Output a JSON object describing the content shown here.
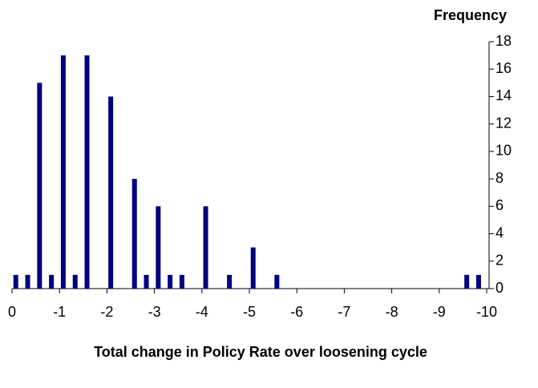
{
  "chart_data": {
    "type": "bar",
    "y_label": "Frequency",
    "x_label": "Total change in Policy Rate over loosening cycle",
    "x": [
      -0.08,
      -0.33,
      -0.58,
      -0.83,
      -1.08,
      -1.33,
      -1.58,
      -2.08,
      -2.58,
      -2.83,
      -3.08,
      -3.33,
      -3.58,
      -4.08,
      -4.58,
      -5.08,
      -5.58,
      -9.58,
      -9.83
    ],
    "values": [
      1,
      1,
      15,
      1,
      17,
      1,
      17,
      14,
      8,
      1,
      6,
      1,
      1,
      6,
      1,
      3,
      1,
      1,
      1
    ],
    "color": "#000080",
    "xlim": [
      0,
      -10
    ],
    "xticks": [
      0,
      -1,
      -2,
      -3,
      -4,
      -5,
      -6,
      -7,
      -8,
      -9,
      -10
    ],
    "ylim": [
      0,
      18
    ],
    "yticks": [
      0,
      2,
      4,
      6,
      8,
      10,
      12,
      14,
      16,
      18
    ],
    "y_axis_side": "right",
    "grid": false
  }
}
